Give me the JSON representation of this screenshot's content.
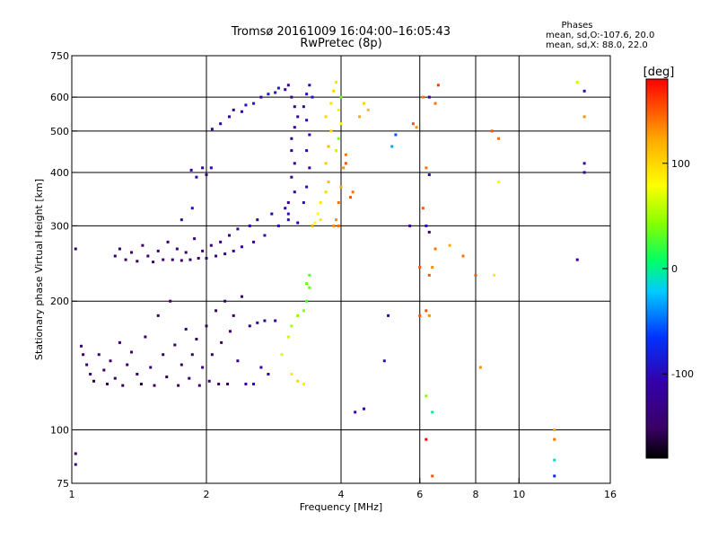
{
  "header": {
    "title_line1": "Tromsø 20161009 16:04:00–16:05:43",
    "title_line2": "RwPretec (8p)"
  },
  "phase_box": {
    "title": "Phases",
    "line1": "mean, sd,O:-107.6, 20.0",
    "line2": "mean, sd,X:  88.0, 22.0"
  },
  "chart_data": {
    "type": "scatter",
    "xlabel": "Frequency [MHz]",
    "ylabel": "Stationary phase Virtual Height [km]",
    "x_scale": "log",
    "y_scale": "log",
    "xlim": [
      1,
      16
    ],
    "ylim": [
      75,
      750
    ],
    "x_ticks": [
      1,
      2,
      4,
      6,
      8,
      10,
      16
    ],
    "x_ticklabels": [
      "1",
      "2",
      "4",
      "6",
      "8",
      "10",
      "16"
    ],
    "y_ticks": [
      75,
      100,
      200,
      300,
      400,
      500,
      600,
      750
    ],
    "y_ticklabels": [
      "75",
      "100",
      "200",
      "300",
      "400",
      "500",
      "600",
      "750"
    ],
    "x_gridlines": [
      2,
      4,
      6,
      8,
      10
    ],
    "y_gridlines": [
      100,
      200,
      300,
      400,
      500,
      600
    ],
    "grid": true,
    "colorbar": {
      "label": "[deg]",
      "range": [
        -180,
        180
      ],
      "ticks": [
        100,
        0,
        -100
      ],
      "ticklabels": [
        "100",
        "0",
        "-100"
      ]
    },
    "series": [
      {
        "values": [
          [
            1.05,
            157,
            -140
          ],
          [
            1.06,
            150,
            -150
          ],
          [
            1.08,
            142,
            -135
          ],
          [
            1.1,
            135,
            -145
          ],
          [
            1.12,
            130,
            -160
          ],
          [
            1.15,
            150,
            -140
          ],
          [
            1.18,
            138,
            -150
          ],
          [
            1.2,
            128,
            -155
          ],
          [
            1.22,
            145,
            -145
          ],
          [
            1.25,
            132,
            -150
          ],
          [
            1.28,
            160,
            -140
          ],
          [
            1.3,
            127,
            -155
          ],
          [
            1.33,
            142,
            -150
          ],
          [
            1.36,
            152,
            -145
          ],
          [
            1.4,
            135,
            -150
          ],
          [
            1.43,
            128,
            -160
          ],
          [
            1.46,
            165,
            -150
          ],
          [
            1.5,
            140,
            -140
          ],
          [
            1.53,
            127,
            -150
          ],
          [
            1.56,
            185,
            -150
          ],
          [
            1.6,
            150,
            -145
          ],
          [
            1.63,
            133,
            -155
          ],
          [
            1.66,
            200,
            -150
          ],
          [
            1.7,
            158,
            -145
          ],
          [
            1.73,
            127,
            -150
          ],
          [
            1.76,
            142,
            -150
          ],
          [
            1.8,
            172,
            -145
          ],
          [
            1.83,
            132,
            -150
          ],
          [
            1.86,
            150,
            -145
          ],
          [
            1.9,
            163,
            -150
          ],
          [
            1.93,
            127,
            -150
          ],
          [
            1.96,
            140,
            -145
          ],
          [
            2.0,
            175,
            -150
          ],
          [
            2.03,
            130,
            -150
          ],
          [
            2.06,
            150,
            -140
          ],
          [
            2.1,
            190,
            -150
          ],
          [
            2.13,
            128,
            -145
          ],
          [
            2.16,
            160,
            -150
          ],
          [
            2.2,
            200,
            -150
          ],
          [
            2.23,
            128,
            -150
          ],
          [
            2.26,
            170,
            -145
          ],
          [
            2.3,
            185,
            -150
          ],
          [
            2.35,
            145,
            -130
          ],
          [
            2.4,
            205,
            -150
          ],
          [
            2.45,
            128,
            -130
          ],
          [
            2.5,
            175,
            -130
          ],
          [
            2.55,
            128,
            -110
          ],
          [
            2.6,
            178,
            -120
          ],
          [
            2.65,
            140,
            -110
          ],
          [
            2.7,
            180,
            -115
          ],
          [
            2.75,
            135,
            -110
          ],
          [
            2.85,
            180,
            -110
          ],
          [
            1.02,
            88,
            -150
          ],
          [
            1.02,
            83,
            -145
          ]
        ]
      },
      {
        "values": [
          [
            1.02,
            265,
            -150
          ],
          [
            1.25,
            255,
            -145
          ],
          [
            1.28,
            265,
            -150
          ],
          [
            1.32,
            250,
            -150
          ],
          [
            1.36,
            260,
            -145
          ],
          [
            1.4,
            248,
            -150
          ],
          [
            1.44,
            270,
            -150
          ],
          [
            1.48,
            255,
            -145
          ],
          [
            1.52,
            247,
            -150
          ],
          [
            1.56,
            262,
            -150
          ],
          [
            1.6,
            250,
            -145
          ],
          [
            1.64,
            275,
            -150
          ],
          [
            1.68,
            250,
            -150
          ],
          [
            1.72,
            265,
            -140
          ],
          [
            1.76,
            249,
            -150
          ],
          [
            1.8,
            260,
            -150
          ],
          [
            1.84,
            250,
            -145
          ],
          [
            1.88,
            280,
            -140
          ],
          [
            1.92,
            252,
            -150
          ],
          [
            1.96,
            262,
            -145
          ],
          [
            2.0,
            252,
            -140
          ],
          [
            2.05,
            270,
            -140
          ],
          [
            2.1,
            255,
            -130
          ],
          [
            2.15,
            275,
            -130
          ],
          [
            2.2,
            258,
            -125
          ],
          [
            2.25,
            285,
            -120
          ],
          [
            2.3,
            262,
            -120
          ],
          [
            2.35,
            295,
            -115
          ],
          [
            2.4,
            268,
            -115
          ],
          [
            2.5,
            300,
            -110
          ],
          [
            2.55,
            275,
            -110
          ],
          [
            2.6,
            310,
            -110
          ],
          [
            2.7,
            285,
            -100
          ],
          [
            2.8,
            320,
            -110
          ],
          [
            2.9,
            300,
            -100
          ],
          [
            3.0,
            330,
            -110
          ],
          [
            3.05,
            310,
            -100
          ],
          [
            1.76,
            310,
            -110
          ],
          [
            1.86,
            330,
            -100
          ],
          [
            1.9,
            390,
            -110
          ],
          [
            1.96,
            410,
            -120
          ],
          [
            2.0,
            395,
            -130
          ],
          [
            2.05,
            410,
            -110
          ],
          [
            1.85,
            405,
            -120
          ],
          [
            2.06,
            505,
            -120
          ],
          [
            2.15,
            520,
            -120
          ],
          [
            2.25,
            540,
            -110
          ],
          [
            2.3,
            560,
            -120
          ],
          [
            2.4,
            555,
            -120
          ],
          [
            2.45,
            575,
            -100
          ],
          [
            2.55,
            580,
            -100
          ],
          [
            2.65,
            600,
            -110
          ],
          [
            2.75,
            610,
            -90
          ],
          [
            2.85,
            615,
            -100
          ],
          [
            2.9,
            630,
            -90
          ],
          [
            3.0,
            625,
            -110
          ],
          [
            3.05,
            640,
            -120
          ],
          [
            3.1,
            600,
            -130
          ],
          [
            3.15,
            570,
            -120
          ],
          [
            3.2,
            540,
            -110
          ],
          [
            3.15,
            510,
            -110
          ],
          [
            3.1,
            480,
            -130
          ],
          [
            3.1,
            450,
            -130
          ],
          [
            3.15,
            420,
            -120
          ],
          [
            3.1,
            390,
            -130
          ],
          [
            3.15,
            360,
            -120
          ],
          [
            3.05,
            340,
            -130
          ],
          [
            3.05,
            320,
            -100
          ],
          [
            3.2,
            305,
            -110
          ],
          [
            3.3,
            340,
            -100
          ],
          [
            3.35,
            370,
            -100
          ],
          [
            3.4,
            410,
            -110
          ],
          [
            3.35,
            450,
            -110
          ],
          [
            3.4,
            490,
            -110
          ],
          [
            3.35,
            530,
            -110
          ],
          [
            3.3,
            570,
            -110
          ],
          [
            3.35,
            610,
            -100
          ],
          [
            3.4,
            640,
            -110
          ],
          [
            3.45,
            600,
            -95
          ]
        ]
      },
      {
        "values": [
          [
            3.55,
            320,
            80
          ],
          [
            3.6,
            340,
            90
          ],
          [
            3.7,
            360,
            100
          ],
          [
            3.75,
            380,
            110
          ],
          [
            3.7,
            420,
            105
          ],
          [
            3.75,
            460,
            110
          ],
          [
            3.8,
            500,
            95
          ],
          [
            3.7,
            540,
            100
          ],
          [
            3.8,
            580,
            95
          ],
          [
            3.85,
            620,
            100
          ],
          [
            3.9,
            650,
            95
          ],
          [
            3.6,
            310,
            90
          ],
          [
            3.5,
            305,
            80
          ],
          [
            3.45,
            300,
            120
          ],
          [
            3.9,
            310,
            130
          ],
          [
            3.95,
            340,
            140
          ],
          [
            4.0,
            370,
            120
          ],
          [
            4.05,
            410,
            130
          ],
          [
            4.1,
            420,
            150
          ],
          [
            4.1,
            440,
            140
          ],
          [
            3.85,
            300,
            130
          ],
          [
            3.95,
            300,
            140
          ],
          [
            4.2,
            350,
            150
          ],
          [
            4.25,
            360,
            140
          ],
          [
            3.9,
            450,
            60
          ],
          [
            3.95,
            480,
            40
          ],
          [
            4.0,
            520,
            80
          ],
          [
            3.95,
            560,
            70
          ],
          [
            4.0,
            600,
            30
          ],
          [
            4.4,
            540,
            120
          ],
          [
            4.5,
            580,
            100
          ],
          [
            4.6,
            560,
            110
          ],
          [
            3.4,
            215,
            30
          ],
          [
            3.35,
            200,
            20
          ],
          [
            3.3,
            190,
            40
          ],
          [
            3.2,
            185,
            40
          ],
          [
            3.1,
            175,
            50
          ],
          [
            3.05,
            165,
            60
          ],
          [
            2.95,
            150,
            70
          ],
          [
            3.1,
            135,
            90
          ],
          [
            3.2,
            130,
            100
          ],
          [
            3.3,
            128,
            90
          ],
          [
            3.35,
            220,
            30
          ],
          [
            3.4,
            230,
            25
          ]
        ]
      },
      {
        "values": [
          [
            4.3,
            110,
            -110
          ],
          [
            4.5,
            112,
            -110
          ],
          [
            5.0,
            145,
            -100
          ],
          [
            5.1,
            185,
            -110
          ],
          [
            5.7,
            300,
            -110
          ],
          [
            6.2,
            300,
            -100
          ],
          [
            6.3,
            290,
            -150
          ],
          [
            6.5,
            580,
            140
          ],
          [
            6.0,
            185,
            150
          ],
          [
            6.2,
            190,
            150
          ],
          [
            6.3,
            185,
            130
          ],
          [
            6.1,
            600,
            140
          ],
          [
            6.3,
            395,
            -110
          ],
          [
            6.3,
            600,
            -120
          ],
          [
            6.2,
            410,
            140
          ],
          [
            6.2,
            95,
            180
          ],
          [
            6.4,
            110,
            -10
          ],
          [
            6.4,
            78,
            150
          ],
          [
            6.1,
            330,
            150
          ],
          [
            6.4,
            240,
            130
          ],
          [
            6.5,
            265,
            140
          ],
          [
            7.0,
            270,
            120
          ],
          [
            7.5,
            255,
            140
          ],
          [
            8.0,
            230,
            150
          ],
          [
            8.2,
            140,
            130
          ],
          [
            8.7,
            500,
            150
          ],
          [
            9.0,
            480,
            140
          ],
          [
            9.0,
            380,
            80
          ],
          [
            8.8,
            230,
            90
          ],
          [
            6.6,
            640,
            160
          ],
          [
            6.3,
            230,
            150
          ],
          [
            6.2,
            120,
            40
          ],
          [
            12.0,
            100,
            120
          ],
          [
            12.0,
            95,
            140
          ],
          [
            12.0,
            85,
            -20
          ],
          [
            12.0,
            78,
            -80
          ],
          [
            13.5,
            650,
            60
          ],
          [
            14.0,
            620,
            -110
          ],
          [
            14.0,
            540,
            130
          ],
          [
            14.0,
            420,
            -110
          ],
          [
            14.0,
            400,
            -120
          ],
          [
            13.5,
            250,
            -120
          ],
          [
            5.2,
            460,
            -40
          ],
          [
            5.3,
            490,
            -60
          ],
          [
            5.8,
            520,
            150
          ],
          [
            5.9,
            510,
            130
          ],
          [
            6.0,
            240,
            150
          ]
        ]
      }
    ]
  }
}
